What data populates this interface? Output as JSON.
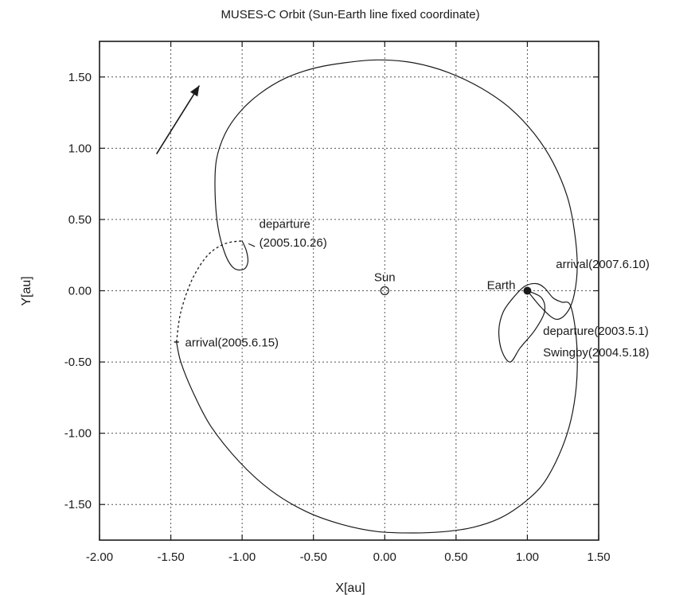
{
  "chart_data": {
    "type": "line",
    "title": "MUSES-C Orbit (Sun-Earth line fixed coordinate)",
    "xlabel": "X[au]",
    "ylabel": "Y[au]",
    "xlim": [
      -2.0,
      1.5
    ],
    "ylim": [
      -1.75,
      1.75
    ],
    "grid": true,
    "x_ticks": [
      -2.0,
      -1.5,
      -1.0,
      -0.5,
      0.0,
      0.5,
      1.0,
      1.5
    ],
    "x_tick_labels": [
      "-2.00",
      "-1.50",
      "-1.00",
      "-0.50",
      "0.00",
      "0.50",
      "1.00",
      "1.50"
    ],
    "y_ticks": [
      1.5,
      1.0,
      0.5,
      0.0,
      -0.5,
      -1.0,
      -1.5
    ],
    "y_tick_labels": [
      "1.50",
      "1.00",
      "0.50",
      "0.00",
      "-0.50",
      "-1.00",
      "-1.50"
    ],
    "series": [
      {
        "style": "solid",
        "x": [
          1.0,
          1.1,
          1.12,
          1.05,
          0.95,
          0.88,
          0.82,
          0.8,
          0.83,
          0.9,
          0.98,
          1.06,
          1.12,
          1.18,
          1.24,
          1.3,
          1.34,
          1.35,
          1.33,
          1.28,
          1.2,
          1.1,
          0.96,
          0.8,
          0.62,
          0.42,
          0.2,
          -0.05,
          -0.3,
          -0.55,
          -0.8,
          -1.02,
          -1.22,
          -1.35,
          -1.43,
          -1.46
        ],
        "y": [
          0.0,
          -0.05,
          -0.15,
          -0.28,
          -0.4,
          -0.5,
          -0.42,
          -0.28,
          -0.15,
          -0.05,
          0.03,
          0.05,
          0.02,
          -0.05,
          -0.08,
          -0.1,
          -0.3,
          -0.55,
          -0.78,
          -1.0,
          -1.2,
          -1.37,
          -1.5,
          -1.6,
          -1.66,
          -1.69,
          -1.7,
          -1.69,
          -1.64,
          -1.55,
          -1.4,
          -1.2,
          -0.95,
          -0.7,
          -0.5,
          -0.36
        ]
      },
      {
        "style": "dashed",
        "x": [
          -1.46,
          -1.43,
          -1.35,
          -1.24,
          -1.12,
          -1.0
        ],
        "y": [
          -0.36,
          -0.15,
          0.08,
          0.25,
          0.33,
          0.35
        ]
      },
      {
        "style": "solid",
        "x": [
          -1.0,
          -0.97,
          -0.96,
          -0.99,
          -1.06,
          -1.12,
          -1.17,
          -1.19,
          -1.18,
          -1.12,
          -1.02,
          -0.88,
          -0.7,
          -0.5,
          -0.28,
          -0.05,
          0.2,
          0.45,
          0.68,
          0.88,
          1.05,
          1.18,
          1.28,
          1.33,
          1.35,
          1.33,
          1.28,
          1.2,
          1.1,
          1.0
        ],
        "y": [
          0.35,
          0.28,
          0.2,
          0.15,
          0.16,
          0.26,
          0.45,
          0.7,
          0.92,
          1.1,
          1.25,
          1.38,
          1.49,
          1.56,
          1.6,
          1.62,
          1.6,
          1.53,
          1.42,
          1.28,
          1.1,
          0.9,
          0.66,
          0.42,
          0.18,
          -0.02,
          -0.15,
          -0.2,
          -0.12,
          0.0
        ]
      }
    ],
    "points": {
      "sun": {
        "x": 0.0,
        "y": 0.0,
        "label": "Sun"
      },
      "earth": {
        "x": 1.0,
        "y": 0.0,
        "label": "Earth"
      }
    },
    "annotations": [
      {
        "text": "departure",
        "x": -0.88,
        "y": 0.44
      },
      {
        "text": "(2005.10.26)",
        "x": -0.88,
        "y": 0.31
      },
      {
        "text": "arrival(2005.6.15)",
        "x": -1.4,
        "y": -0.39
      },
      {
        "text": "arrival(2007.6.10)",
        "x": 1.2,
        "y": 0.16
      },
      {
        "text": "departure(2003.5.1)",
        "x": 1.11,
        "y": -0.31
      },
      {
        "text": "Swingby(2004.5.18)",
        "x": 1.11,
        "y": -0.46
      }
    ],
    "arrow": {
      "x1": -1.6,
      "y1": 0.96,
      "x2": -1.3,
      "y2": 1.44
    }
  }
}
